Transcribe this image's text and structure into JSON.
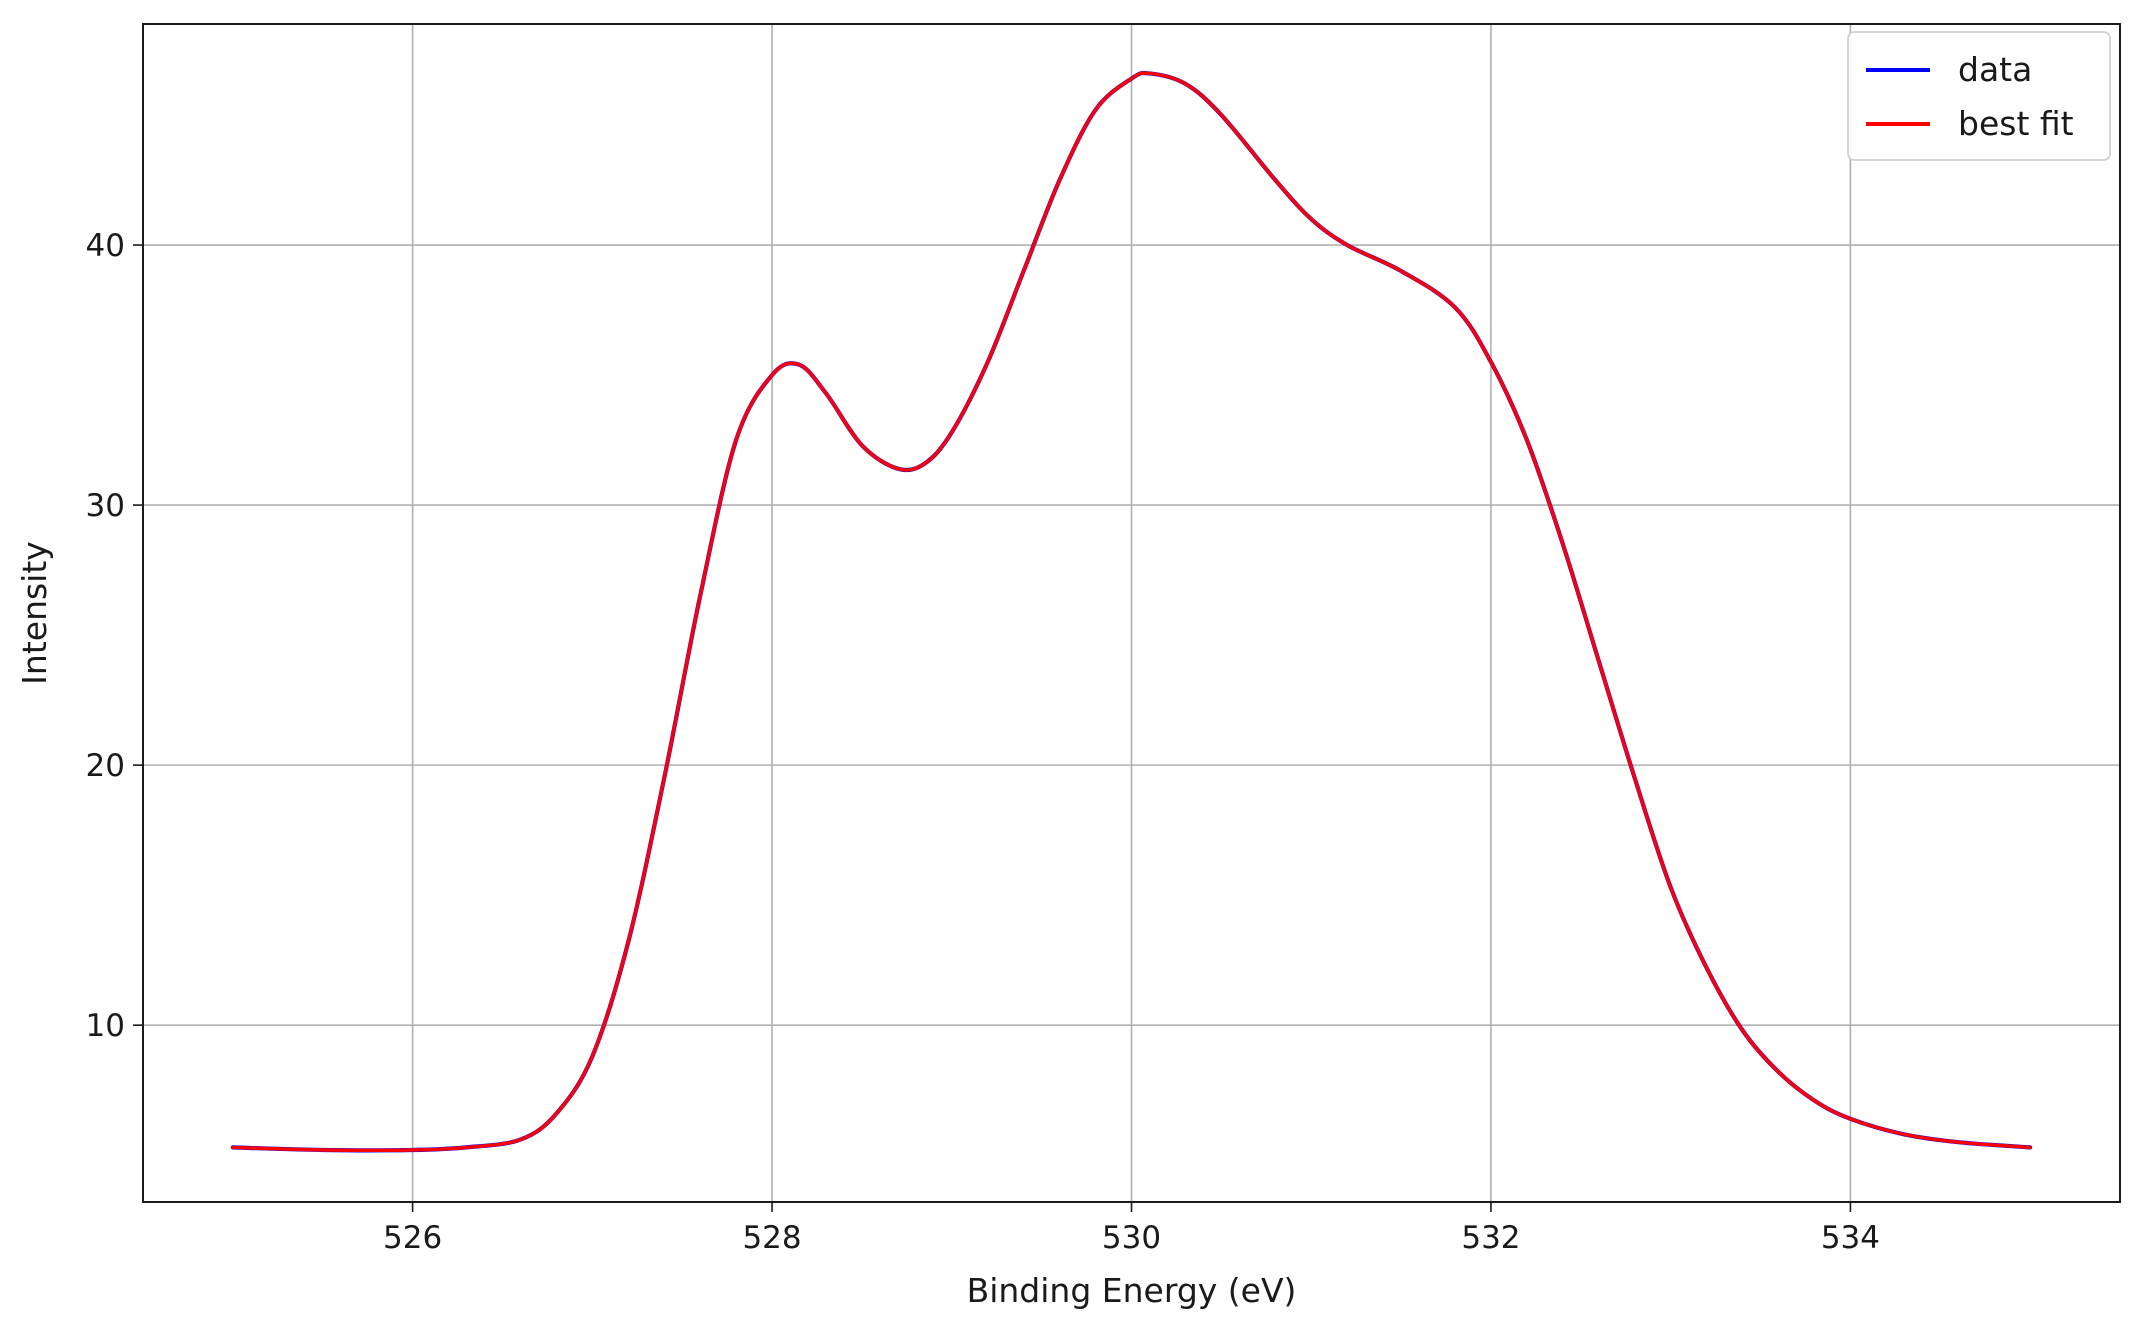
{
  "chart_data": {
    "type": "line",
    "title": "",
    "xlabel": "Binding Energy (eV)",
    "ylabel": "Intensity",
    "xlim": [
      524.5,
      535.5
    ],
    "ylim": [
      3.2,
      48.5
    ],
    "xticks": [
      526,
      528,
      530,
      532,
      534
    ],
    "yticks": [
      10,
      20,
      30,
      40
    ],
    "grid": true,
    "legend_position": "top-right",
    "x": [
      525.0,
      525.5,
      526.0,
      526.3,
      526.6,
      526.8,
      527.0,
      527.2,
      527.4,
      527.6,
      527.8,
      528.0,
      528.15,
      528.3,
      528.5,
      528.7,
      528.85,
      529.0,
      529.2,
      529.4,
      529.6,
      529.8,
      530.0,
      530.1,
      530.3,
      530.5,
      530.8,
      531.0,
      531.2,
      531.5,
      531.8,
      532.0,
      532.2,
      532.4,
      532.6,
      532.8,
      533.0,
      533.2,
      533.4,
      533.6,
      533.8,
      534.0,
      534.3,
      534.6,
      535.0
    ],
    "series": [
      {
        "name": "data",
        "color": "#0000ff",
        "values": [
          5.3,
          5.2,
          5.2,
          5.3,
          5.6,
          6.6,
          8.8,
          13.2,
          19.5,
          26.5,
          32.5,
          35.0,
          35.4,
          34.3,
          32.3,
          31.4,
          31.6,
          32.8,
          35.5,
          39.0,
          42.5,
          45.2,
          46.4,
          46.6,
          46.2,
          45.0,
          42.5,
          41.0,
          40.0,
          39.0,
          37.6,
          35.5,
          32.5,
          28.5,
          24.0,
          19.5,
          15.3,
          12.2,
          9.8,
          8.2,
          7.1,
          6.4,
          5.8,
          5.5,
          5.3
        ]
      },
      {
        "name": "best fit",
        "color": "#ff0000",
        "values": [
          5.3,
          5.2,
          5.2,
          5.3,
          5.6,
          6.6,
          8.8,
          13.2,
          19.5,
          26.5,
          32.5,
          35.0,
          35.4,
          34.3,
          32.3,
          31.4,
          31.6,
          32.8,
          35.5,
          39.0,
          42.5,
          45.2,
          46.4,
          46.6,
          46.2,
          45.0,
          42.5,
          41.0,
          40.0,
          39.0,
          37.6,
          35.5,
          32.5,
          28.5,
          24.0,
          19.5,
          15.3,
          12.2,
          9.8,
          8.2,
          7.1,
          6.4,
          5.8,
          5.5,
          5.3
        ]
      }
    ]
  }
}
